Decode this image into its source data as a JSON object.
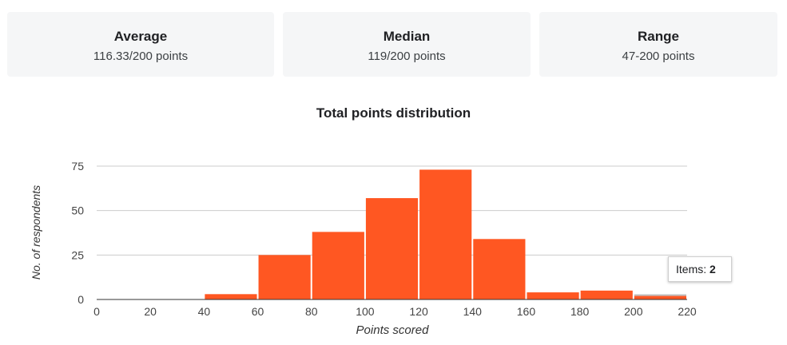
{
  "stats": [
    {
      "title": "Average",
      "value": "116.33/200 points"
    },
    {
      "title": "Median",
      "value": "119/200 points"
    },
    {
      "title": "Range",
      "value": "47-200 points"
    }
  ],
  "tooltip": {
    "label": "Items:",
    "value": "2"
  },
  "colors": {
    "bar": "#ff5722",
    "grid": "#cccccc",
    "axis": "#333333",
    "card_bg": "#f5f6f7"
  },
  "chart_data": {
    "type": "bar",
    "title": "Total points distribution",
    "xlabel": "Points scored",
    "ylabel": "No. of respondents",
    "bin_edges": [
      0,
      20,
      40,
      60,
      80,
      100,
      120,
      140,
      160,
      180,
      200,
      220
    ],
    "values": [
      0,
      0,
      3,
      25,
      38,
      57,
      73,
      34,
      4,
      5,
      2
    ],
    "xlim": [
      0,
      220
    ],
    "ylim": [
      0,
      75
    ],
    "x_ticks": [
      "0",
      "20",
      "40",
      "60",
      "80",
      "100",
      "120",
      "140",
      "160",
      "180",
      "200",
      "220"
    ],
    "y_ticks": [
      "0",
      "25",
      "50",
      "75"
    ],
    "grid": true,
    "highlighted_bin": 10
  }
}
